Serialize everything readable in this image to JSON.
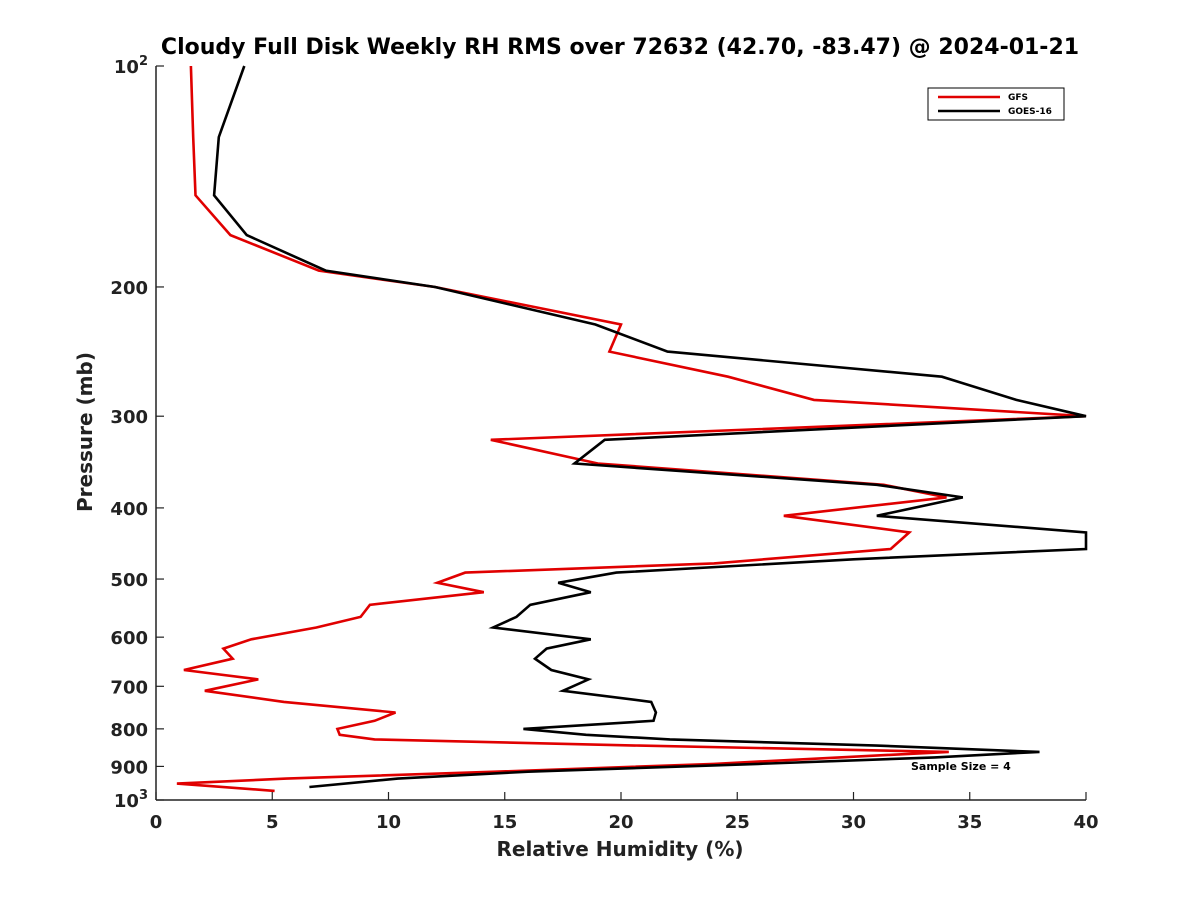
{
  "chart_data": {
    "type": "line",
    "title": "Cloudy Full Disk Weekly RH RMS over 72632 (42.70, -83.47) @ 2024-01-21",
    "xlabel": "Relative Humidity (%)",
    "ylabel": "Pressure (mb)",
    "xlim": [
      0,
      40
    ],
    "ylim": [
      100,
      1000
    ],
    "y_scale": "log",
    "y_reversed": true,
    "grid": false,
    "legend_position": "top-right",
    "annotation": "Sample Size = 4",
    "x_ticks": [
      {
        "value": 0,
        "label": "0"
      },
      {
        "value": 5,
        "label": "5"
      },
      {
        "value": 10,
        "label": "10"
      },
      {
        "value": 15,
        "label": "15"
      },
      {
        "value": 20,
        "label": "20"
      },
      {
        "value": 25,
        "label": "25"
      },
      {
        "value": 30,
        "label": "30"
      },
      {
        "value": 35,
        "label": "35"
      },
      {
        "value": 40,
        "label": "40"
      }
    ],
    "y_ticks": [
      {
        "value": 100,
        "label": "10",
        "sup": "2"
      },
      {
        "value": 200,
        "label": "200"
      },
      {
        "value": 300,
        "label": "300"
      },
      {
        "value": 400,
        "label": "400"
      },
      {
        "value": 500,
        "label": "500"
      },
      {
        "value": 600,
        "label": "600"
      },
      {
        "value": 700,
        "label": "700"
      },
      {
        "value": 800,
        "label": "800"
      },
      {
        "value": 900,
        "label": "900"
      },
      {
        "value": 1000,
        "label": "10",
        "sup": "3"
      }
    ],
    "series": [
      {
        "name": "GFS",
        "color": "#e00000",
        "points": [
          [
            1.5,
            100
          ],
          [
            1.6,
            125
          ],
          [
            1.7,
            150
          ],
          [
            3.2,
            170
          ],
          [
            7.0,
            190
          ],
          [
            12.0,
            200
          ],
          [
            20.0,
            225
          ],
          [
            19.5,
            245
          ],
          [
            24.6,
            265
          ],
          [
            28.3,
            285
          ],
          [
            40.0,
            300
          ],
          [
            14.4,
            323
          ],
          [
            19.0,
            348
          ],
          [
            31.3,
            372
          ],
          [
            34.0,
            387
          ],
          [
            27.0,
            410
          ],
          [
            32.4,
            432
          ],
          [
            31.6,
            455
          ],
          [
            24.0,
            476
          ],
          [
            13.3,
            490
          ],
          [
            12.1,
            506
          ],
          [
            14.1,
            521
          ],
          [
            9.2,
            542
          ],
          [
            8.8,
            563
          ],
          [
            6.9,
            582
          ],
          [
            4.1,
            604
          ],
          [
            2.9,
            622
          ],
          [
            3.3,
            642
          ],
          [
            1.2,
            665
          ],
          [
            4.4,
            685
          ],
          [
            2.1,
            710
          ],
          [
            5.5,
            735
          ],
          [
            10.3,
            760
          ],
          [
            9.4,
            780
          ],
          [
            7.8,
            800
          ],
          [
            7.9,
            815
          ],
          [
            9.4,
            827
          ],
          [
            20.8,
            843
          ],
          [
            34.1,
            860
          ],
          [
            29.4,
            875
          ],
          [
            24.0,
            893
          ],
          [
            14.6,
            915
          ],
          [
            5.6,
            935
          ],
          [
            0.9,
            950
          ],
          [
            5.1,
            972
          ]
        ]
      },
      {
        "name": "GOES-16",
        "color": "#000000",
        "points": [
          [
            3.8,
            100
          ],
          [
            2.7,
            125
          ],
          [
            2.5,
            150
          ],
          [
            3.9,
            170
          ],
          [
            7.3,
            190
          ],
          [
            12.0,
            200
          ],
          [
            18.9,
            225
          ],
          [
            22.0,
            245
          ],
          [
            33.8,
            265
          ],
          [
            37.0,
            285
          ],
          [
            40.0,
            300
          ],
          [
            19.3,
            323
          ],
          [
            18.0,
            348
          ],
          [
            31.0,
            372
          ],
          [
            34.7,
            387
          ],
          [
            31.0,
            410
          ],
          [
            40.0,
            432
          ],
          [
            40.0,
            455
          ],
          [
            30.0,
            470
          ],
          [
            19.8,
            490
          ],
          [
            17.3,
            506
          ],
          [
            18.7,
            521
          ],
          [
            16.1,
            542
          ],
          [
            15.5,
            563
          ],
          [
            14.5,
            582
          ],
          [
            18.7,
            604
          ],
          [
            16.8,
            622
          ],
          [
            16.3,
            642
          ],
          [
            17.0,
            665
          ],
          [
            18.6,
            685
          ],
          [
            17.5,
            710
          ],
          [
            21.3,
            735
          ],
          [
            21.5,
            760
          ],
          [
            21.4,
            780
          ],
          [
            15.8,
            800
          ],
          [
            18.5,
            815
          ],
          [
            22.1,
            827
          ],
          [
            31.0,
            843
          ],
          [
            38.0,
            860
          ],
          [
            33.5,
            875
          ],
          [
            25.9,
            893
          ],
          [
            16.0,
            915
          ],
          [
            10.4,
            935
          ],
          [
            6.6,
            960
          ]
        ]
      }
    ]
  }
}
